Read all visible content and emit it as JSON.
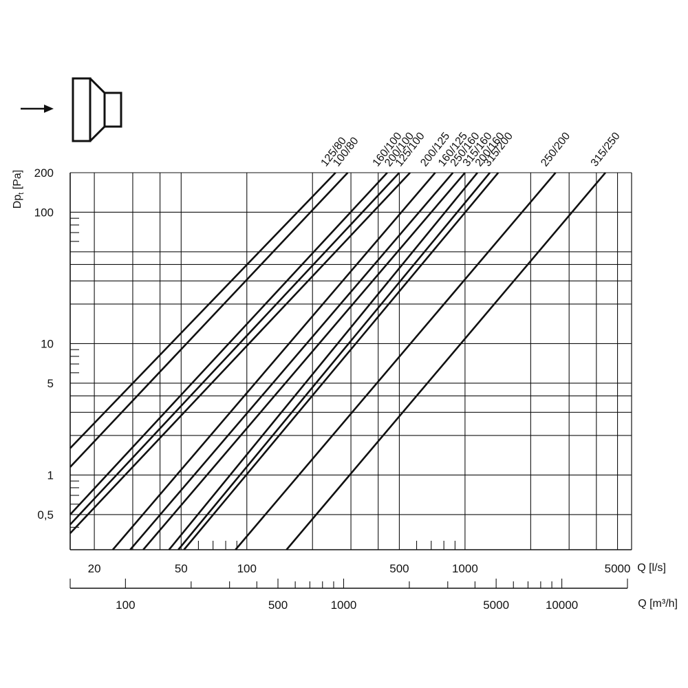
{
  "chart_data": {
    "type": "line",
    "scale": "log-log",
    "xlabel": "Q [l/s]",
    "ylabel_main": "Dp",
    "ylabel_sub": "t",
    "ylabel_unit": " [Pa]",
    "x2label": "Q [m³/h]",
    "xlim": [
      15.5,
      5800
    ],
    "ylim": [
      0.27,
      200
    ],
    "x_ticks": [
      {
        "value": 20,
        "label": "20"
      },
      {
        "value": 50,
        "label": "50"
      },
      {
        "value": 100,
        "label": "100"
      },
      {
        "value": 500,
        "label": "500"
      },
      {
        "value": 1000,
        "label": "1000"
      },
      {
        "value": 5000,
        "label": "5000"
      }
    ],
    "x_minor_ticks": [
      60,
      70,
      80,
      90,
      600,
      700,
      800,
      900
    ],
    "x_gridlines": [
      20,
      30,
      40,
      50,
      100,
      200,
      300,
      400,
      500,
      1000,
      2000,
      3000,
      4000,
      5000
    ],
    "x2_ticks": [
      {
        "value": 100,
        "label": "100"
      },
      {
        "value": 500,
        "label": "500"
      },
      {
        "value": 1000,
        "label": "1000"
      },
      {
        "value": 5000,
        "label": "5000"
      },
      {
        "value": 10000,
        "label": "10000"
      }
    ],
    "x2_minor_ticks": [
      200,
      300,
      400,
      600,
      700,
      800,
      900,
      2000,
      3000,
      4000,
      6000,
      7000,
      8000,
      9000
    ],
    "y_ticks": [
      {
        "value": 200,
        "label": "200"
      },
      {
        "value": 100,
        "label": "100"
      },
      {
        "value": 10,
        "label": "10"
      },
      {
        "value": 5,
        "label": "5"
      },
      {
        "value": 1,
        "label": "1"
      },
      {
        "value": 0.5,
        "label": "0,5"
      }
    ],
    "y_gridlines": [
      200,
      100,
      50,
      40,
      30,
      20,
      10,
      5,
      4,
      3,
      2,
      1,
      0.5
    ],
    "y_minor_ticks": [
      90,
      80,
      70,
      60,
      9,
      8,
      7,
      6,
      0.9,
      0.8,
      0.7,
      0.6,
      0.4
    ],
    "series": [
      {
        "name": "125/80",
        "points": [
          [
            15.5,
            1.6
          ],
          [
            255,
            200
          ]
        ]
      },
      {
        "name": "100/80",
        "points": [
          [
            15.5,
            1.15
          ],
          [
            290,
            200
          ]
        ]
      },
      {
        "name": "160/100",
        "points": [
          [
            15.5,
            0.5
          ],
          [
            440,
            200
          ]
        ]
      },
      {
        "name": "200/100",
        "points": [
          [
            15.5,
            0.42
          ],
          [
            500,
            200
          ]
        ]
      },
      {
        "name": "125/100",
        "points": [
          [
            15.5,
            0.36
          ],
          [
            560,
            200
          ]
        ]
      },
      {
        "name": "200/125",
        "points": [
          [
            24.3,
            0.27
          ],
          [
            730,
            200
          ]
        ]
      },
      {
        "name": "160/125",
        "points": [
          [
            29.2,
            0.27
          ],
          [
            880,
            200
          ]
        ]
      },
      {
        "name": "250/160",
        "points": [
          [
            33.5,
            0.27
          ],
          [
            1000,
            200
          ]
        ]
      },
      {
        "name": "315/160",
        "points": [
          [
            44.0,
            0.27
          ],
          [
            1140,
            200
          ]
        ]
      },
      {
        "name": "200/160",
        "points": [
          [
            48.5,
            0.27
          ],
          [
            1300,
            200
          ]
        ]
      },
      {
        "name": "315/200",
        "points": [
          [
            51.5,
            0.27
          ],
          [
            1420,
            200
          ]
        ]
      },
      {
        "name": "250/200",
        "points": [
          [
            88.7,
            0.27
          ],
          [
            2600,
            200
          ]
        ]
      },
      {
        "name": "315/250",
        "points": [
          [
            152,
            0.27
          ],
          [
            4400,
            200
          ]
        ]
      }
    ]
  },
  "diagram": {
    "icon": "reducer-fitting-icon",
    "arrow": "flow-direction-arrow-icon"
  }
}
